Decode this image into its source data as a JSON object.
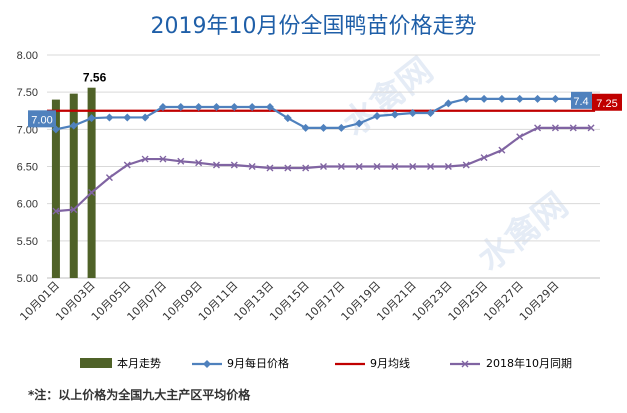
{
  "title": "2019年10月份全国鸭苗价格走势",
  "footnote": "*注：以上价格为全国九大主产区平均价格",
  "watermark_text": "水禽网",
  "colors": {
    "bar": "#4f6228",
    "daily": "#4f81bd",
    "avg": "#c00000",
    "last_year": "#8064a2",
    "grid": "#d9d9d9",
    "title": "#1f5fa8"
  },
  "chart_data": {
    "type": "bar-line",
    "title": "2019年10月份全国鸭苗价格走势",
    "ylim": [
      5.0,
      8.0
    ],
    "yticks": [
      "5.00",
      "5.50",
      "6.00",
      "6.50",
      "7.00",
      "7.50",
      "8.00"
    ],
    "grid": true,
    "legend_position": "bottom",
    "x_labels": [
      "10月01日",
      "10月03日",
      "10月05日",
      "10月07日",
      "10月09日",
      "10月11日",
      "10月13日",
      "10月15日",
      "10月17日",
      "10月19日",
      "10月21日",
      "10月23日",
      "10月25日",
      "10月27日",
      "10月29日"
    ],
    "series": [
      {
        "name": "本月走势",
        "kind": "bar",
        "values": [
          7.4,
          7.48,
          7.56
        ],
        "label": "7.56"
      },
      {
        "name": "9月每日价格",
        "kind": "line",
        "marker": "diamond",
        "values": [
          7.0,
          7.05,
          7.15,
          7.16,
          7.16,
          7.16,
          7.3,
          7.3,
          7.3,
          7.3,
          7.3,
          7.3,
          7.3,
          7.15,
          7.02,
          7.02,
          7.02,
          7.08,
          7.18,
          7.2,
          7.22,
          7.22,
          7.35,
          7.41,
          7.41,
          7.41,
          7.41,
          7.41,
          7.41,
          7.41,
          7.41
        ],
        "start_label": "7.00",
        "end_label": "7.4"
      },
      {
        "name": "9月均线",
        "kind": "line",
        "value": 7.25,
        "end_label": "7.25"
      },
      {
        "name": "2018年10月同期",
        "kind": "line",
        "marker": "x",
        "values": [
          5.9,
          5.92,
          6.15,
          6.35,
          6.52,
          6.6,
          6.6,
          6.57,
          6.55,
          6.52,
          6.52,
          6.5,
          6.48,
          6.48,
          6.48,
          6.5,
          6.5,
          6.5,
          6.5,
          6.5,
          6.5,
          6.5,
          6.5,
          6.52,
          6.62,
          6.72,
          6.9,
          7.02,
          7.02,
          7.02,
          7.02
        ]
      }
    ]
  }
}
